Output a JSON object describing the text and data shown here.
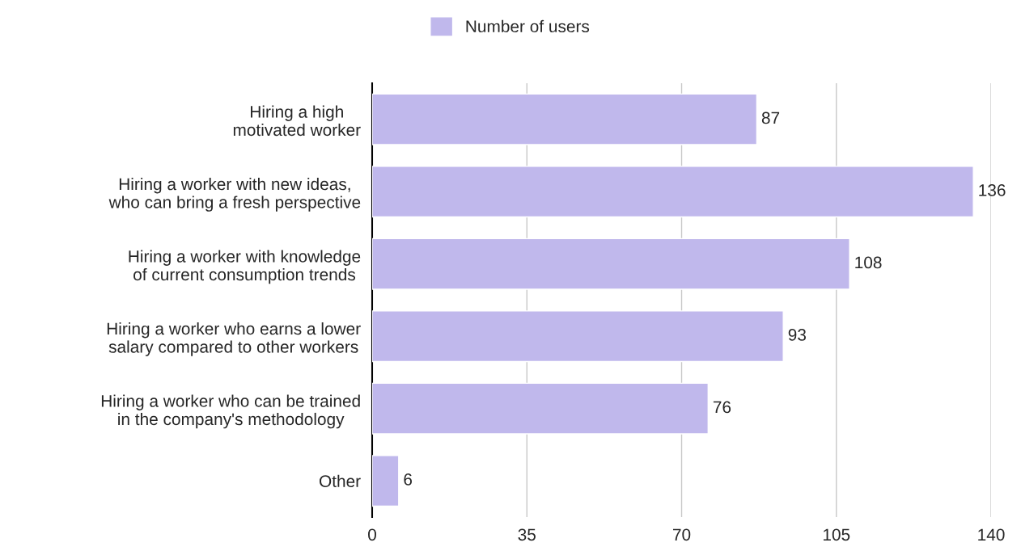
{
  "chart_data": {
    "type": "bar",
    "orientation": "horizontal",
    "categories": [
      "Hiring a high\nmotivated worker",
      "Hiring a worker with new ideas,\nwho can bring a fresh perspective",
      "Hiring a worker with knowledge\nof current consumption trends",
      "Hiring a worker who earns a lower\nsalary compared to other workers",
      "Hiring a worker who can be trained\nin the company's methodology",
      "Other"
    ],
    "series": [
      {
        "name": "Number of users",
        "color": "#c0b8ec",
        "values": [
          87,
          136,
          108,
          93,
          76,
          6
        ]
      }
    ],
    "xlim": [
      0,
      140
    ],
    "xticks": [
      0,
      35,
      70,
      105,
      140
    ],
    "grid": "x",
    "legend": "top",
    "data_labels": true
  }
}
